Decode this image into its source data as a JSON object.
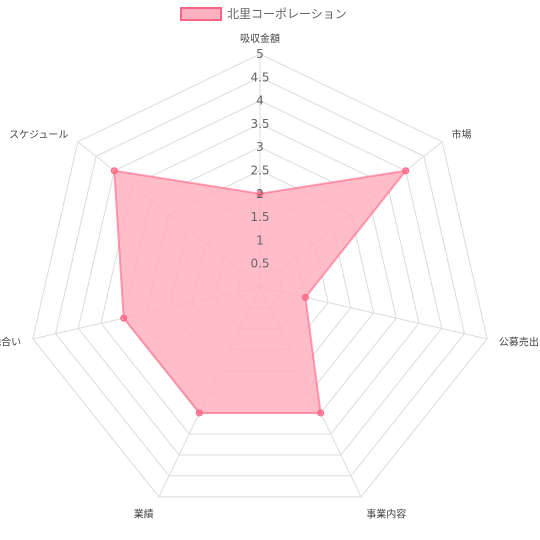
{
  "chart_data": {
    "type": "radar",
    "legend": {
      "position": "top",
      "entries": [
        {
          "name": "北里コーポレーション",
          "fill": "#ffb1c1",
          "stroke": "#ff6384"
        }
      ]
    },
    "axes": [
      "吸収金額",
      "市場",
      "公募売出比",
      "事業内容",
      "業績",
      "地合い",
      "スケジュール"
    ],
    "r_ticks": [
      "0.5",
      "1",
      "1.5",
      "2",
      "2.5",
      "3",
      "3.5",
      "4",
      "4.5",
      "5"
    ],
    "rlim": [
      0,
      5
    ],
    "grid": true,
    "series": [
      {
        "name": "北里コーポレーション",
        "values": [
          2,
          4,
          1,
          3,
          3,
          3,
          4
        ]
      }
    ]
  }
}
